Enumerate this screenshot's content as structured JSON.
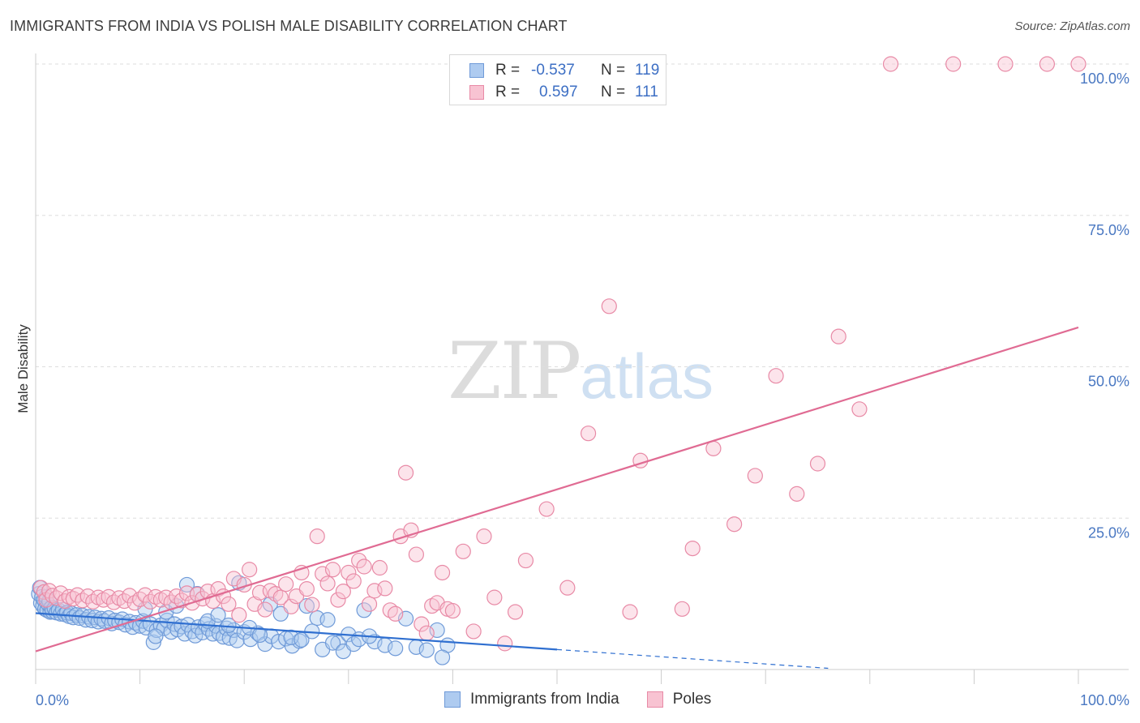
{
  "header": {
    "title": "IMMIGRANTS FROM INDIA VS POLISH MALE DISABILITY CORRELATION CHART",
    "source": "Source: ZipAtlas.com"
  },
  "watermark": {
    "part1": "ZIP",
    "part2": "atlas"
  },
  "legend_top": {
    "rows": [
      {
        "r_label": "R =",
        "r_value": "-0.537",
        "n_label": "N =",
        "n_value": "119",
        "color": "#aecbf0",
        "border": "#6f9ad8"
      },
      {
        "r_label": "R =",
        "r_value": "0.597",
        "n_label": "N =",
        "n_value": "111",
        "color": "#f8c3d2",
        "border": "#e88aa6"
      }
    ]
  },
  "legend_bottom": {
    "items": [
      {
        "label": "Immigrants from India",
        "color": "#aecbf0",
        "border": "#6f9ad8"
      },
      {
        "label": "Poles",
        "color": "#f8c3d2",
        "border": "#e88aa6"
      }
    ]
  },
  "chart_data": {
    "type": "scatter",
    "title": "IMMIGRANTS FROM INDIA VS POLISH MALE DISABILITY CORRELATION CHART",
    "xlabel": "",
    "ylabel": "Male Disability",
    "xlim": [
      0,
      100
    ],
    "ylim": [
      0,
      100
    ],
    "x_tick_labels": [
      "0.0%",
      "100.0%"
    ],
    "y_ticks": [
      25,
      50,
      75,
      100
    ],
    "y_tick_labels": [
      "25.0%",
      "50.0%",
      "75.0%",
      "100.0%"
    ],
    "grid": "horizontal dashed",
    "legend_position": "top-center",
    "colors": {
      "india_fill": "#aecbf0",
      "india_stroke": "#6f9ad8",
      "india_line": "#2f6fd0",
      "poles_fill": "#f8c3d2",
      "poles_stroke": "#e88aa6",
      "poles_line": "#e06b93"
    },
    "series": [
      {
        "name": "Immigrants from India",
        "trend": {
          "x": [
            0,
            50,
            76
          ],
          "y": [
            9.3,
            3.3,
            0.2
          ],
          "solid_until": 50
        },
        "points": [
          [
            0.3,
            12.5
          ],
          [
            0.4,
            13.5
          ],
          [
            0.5,
            11
          ],
          [
            0.6,
            12
          ],
          [
            0.7,
            10.5
          ],
          [
            0.8,
            11.5
          ],
          [
            0.9,
            10
          ],
          [
            1.0,
            12
          ],
          [
            1.1,
            9.8
          ],
          [
            1.2,
            10.8
          ],
          [
            1.3,
            11.3
          ],
          [
            1.4,
            9.5
          ],
          [
            1.5,
            10.2
          ],
          [
            1.6,
            9.6
          ],
          [
            1.8,
            10.1
          ],
          [
            2.0,
            9.4
          ],
          [
            2.2,
            9.8
          ],
          [
            2.4,
            9.2
          ],
          [
            2.6,
            9.9
          ],
          [
            2.8,
            9.1
          ],
          [
            3.0,
            9.4
          ],
          [
            3.2,
            8.8
          ],
          [
            3.4,
            9.3
          ],
          [
            3.6,
            8.6
          ],
          [
            3.9,
            9.0
          ],
          [
            4.2,
            8.5
          ],
          [
            4.5,
            8.9
          ],
          [
            4.8,
            8.2
          ],
          [
            5.1,
            8.7
          ],
          [
            5.4,
            8.1
          ],
          [
            5.7,
            8.6
          ],
          [
            6.0,
            7.9
          ],
          [
            6.3,
            8.4
          ],
          [
            6.6,
            8.0
          ],
          [
            7.0,
            8.5
          ],
          [
            7.3,
            7.6
          ],
          [
            7.6,
            8.1
          ],
          [
            8.0,
            7.8
          ],
          [
            8.3,
            8.3
          ],
          [
            8.6,
            7.4
          ],
          [
            9.0,
            7.9
          ],
          [
            9.3,
            7.0
          ],
          [
            9.6,
            7.7
          ],
          [
            10.0,
            7.2
          ],
          [
            10.3,
            8.0
          ],
          [
            10.6,
            6.9
          ],
          [
            11.0,
            7.5
          ],
          [
            11.3,
            4.5
          ],
          [
            11.6,
            6.5
          ],
          [
            12.0,
            7.3
          ],
          [
            12.3,
            6.8
          ],
          [
            12.6,
            8.1
          ],
          [
            13.0,
            6.2
          ],
          [
            13.3,
            7.5
          ],
          [
            13.6,
            6.6
          ],
          [
            14.0,
            7.1
          ],
          [
            14.3,
            5.9
          ],
          [
            14.6,
            7.4
          ],
          [
            15.0,
            6.3
          ],
          [
            15.3,
            5.6
          ],
          [
            15.6,
            7.0
          ],
          [
            16.0,
            6.1
          ],
          [
            16.3,
            7.5
          ],
          [
            16.6,
            6.7
          ],
          [
            17.0,
            5.9
          ],
          [
            17.3,
            7.2
          ],
          [
            17.6,
            6.0
          ],
          [
            18.0,
            5.4
          ],
          [
            18.3,
            6.8
          ],
          [
            18.6,
            5.2
          ],
          [
            19.0,
            6.5
          ],
          [
            19.3,
            4.8
          ],
          [
            20.0,
            6.2
          ],
          [
            20.6,
            5.0
          ],
          [
            21.3,
            6.0
          ],
          [
            22.0,
            4.2
          ],
          [
            22.6,
            5.5
          ],
          [
            23.3,
            4.6
          ],
          [
            24.0,
            5.1
          ],
          [
            24.6,
            3.9
          ],
          [
            25.3,
            4.7
          ],
          [
            26.0,
            10.5
          ],
          [
            27.0,
            8.5
          ],
          [
            28.0,
            8.2
          ],
          [
            29.0,
            4.4
          ],
          [
            30.0,
            5.8
          ],
          [
            31.5,
            9.8
          ],
          [
            32.5,
            4.6
          ],
          [
            33.5,
            4.0
          ],
          [
            34.5,
            3.5
          ],
          [
            35.5,
            8.4
          ],
          [
            36.5,
            3.7
          ],
          [
            37.5,
            3.2
          ],
          [
            38.5,
            6.5
          ],
          [
            39.5,
            4.0
          ],
          [
            10.5,
            10.0
          ],
          [
            11.5,
            5.5
          ],
          [
            12.5,
            9.5
          ],
          [
            13.5,
            10.5
          ],
          [
            14.5,
            14.0
          ],
          [
            15.5,
            12.5
          ],
          [
            16.5,
            8.0
          ],
          [
            17.5,
            9.0
          ],
          [
            18.5,
            7.3
          ],
          [
            19.5,
            14.3
          ],
          [
            20.5,
            6.9
          ],
          [
            21.5,
            5.7
          ],
          [
            22.5,
            10.8
          ],
          [
            23.5,
            9.2
          ],
          [
            24.5,
            5.3
          ],
          [
            25.5,
            4.9
          ],
          [
            26.5,
            6.3
          ],
          [
            27.5,
            3.3
          ],
          [
            28.5,
            4.4
          ],
          [
            29.5,
            3.0
          ],
          [
            30.5,
            4.2
          ],
          [
            31.0,
            5.0
          ],
          [
            32.0,
            5.5
          ],
          [
            39.0,
            2.0
          ]
        ]
      },
      {
        "name": "Poles",
        "trend": {
          "x": [
            0,
            100
          ],
          "y": [
            3.0,
            56.5
          ]
        },
        "points": [
          [
            0.5,
            13.5
          ],
          [
            0.8,
            12.8
          ],
          [
            1.0,
            11.5
          ],
          [
            1.3,
            13.0
          ],
          [
            1.6,
            12.2
          ],
          [
            2.0,
            11.8
          ],
          [
            2.4,
            12.6
          ],
          [
            2.8,
            11.3
          ],
          [
            3.2,
            12.0
          ],
          [
            3.6,
            11.7
          ],
          [
            4.0,
            12.3
          ],
          [
            4.5,
            11.4
          ],
          [
            5.0,
            12.1
          ],
          [
            5.5,
            11.2
          ],
          [
            6.0,
            11.9
          ],
          [
            6.5,
            11.5
          ],
          [
            7.0,
            12.0
          ],
          [
            7.5,
            11.1
          ],
          [
            8.0,
            11.8
          ],
          [
            8.5,
            11.3
          ],
          [
            9.0,
            12.2
          ],
          [
            9.5,
            11.0
          ],
          [
            10.0,
            11.6
          ],
          [
            10.5,
            12.3
          ],
          [
            11.0,
            11.2
          ],
          [
            11.5,
            12.0
          ],
          [
            12.0,
            11.5
          ],
          [
            12.5,
            11.9
          ],
          [
            13.0,
            11.1
          ],
          [
            13.5,
            12.1
          ],
          [
            14.0,
            11.4
          ],
          [
            14.5,
            12.6
          ],
          [
            15.0,
            11.0
          ],
          [
            15.5,
            12.4
          ],
          [
            16.0,
            11.7
          ],
          [
            16.5,
            12.9
          ],
          [
            17.0,
            11.3
          ],
          [
            17.5,
            13.3
          ],
          [
            18.0,
            12.1
          ],
          [
            18.5,
            10.8
          ],
          [
            19.0,
            15.0
          ],
          [
            19.5,
            9.0
          ],
          [
            20.0,
            14.0
          ],
          [
            20.5,
            16.5
          ],
          [
            21.0,
            10.8
          ],
          [
            21.5,
            12.7
          ],
          [
            22.0,
            9.9
          ],
          [
            22.5,
            13.0
          ],
          [
            23.0,
            12.5
          ],
          [
            23.5,
            11.9
          ],
          [
            24.0,
            14.1
          ],
          [
            24.5,
            10.4
          ],
          [
            25.0,
            12.1
          ],
          [
            25.5,
            16.0
          ],
          [
            26.0,
            13.3
          ],
          [
            26.5,
            10.7
          ],
          [
            27.0,
            22.0
          ],
          [
            27.5,
            15.8
          ],
          [
            28.0,
            14.2
          ],
          [
            28.5,
            16.5
          ],
          [
            29.0,
            11.5
          ],
          [
            29.5,
            12.9
          ],
          [
            30.0,
            16.0
          ],
          [
            30.5,
            14.6
          ],
          [
            31.0,
            18.0
          ],
          [
            31.5,
            17.0
          ],
          [
            32.0,
            10.8
          ],
          [
            32.5,
            13.0
          ],
          [
            33.0,
            16.8
          ],
          [
            33.5,
            13.4
          ],
          [
            34.0,
            9.8
          ],
          [
            34.5,
            9.2
          ],
          [
            35.0,
            22.0
          ],
          [
            35.5,
            32.5
          ],
          [
            36.0,
            23.0
          ],
          [
            36.5,
            19.0
          ],
          [
            37.0,
            7.5
          ],
          [
            37.5,
            6.0
          ],
          [
            38.0,
            10.5
          ],
          [
            38.5,
            11.0
          ],
          [
            39.0,
            16.0
          ],
          [
            39.5,
            10.0
          ],
          [
            40.0,
            9.7
          ],
          [
            41.0,
            19.5
          ],
          [
            42.0,
            6.3
          ],
          [
            43.0,
            22.0
          ],
          [
            44.0,
            11.9
          ],
          [
            45.0,
            4.3
          ],
          [
            46.0,
            9.5
          ],
          [
            47.0,
            18.0
          ],
          [
            49.0,
            26.5
          ],
          [
            51.0,
            13.5
          ],
          [
            53.0,
            39.0
          ],
          [
            55.0,
            60.0
          ],
          [
            57.0,
            9.5
          ],
          [
            58.0,
            34.5
          ],
          [
            62.0,
            10.0
          ],
          [
            63.0,
            20.0
          ],
          [
            65.0,
            36.5
          ],
          [
            67.0,
            24.0
          ],
          [
            69.0,
            32.0
          ],
          [
            71.0,
            48.5
          ],
          [
            73.0,
            29.0
          ],
          [
            75.0,
            34.0
          ],
          [
            77.0,
            55.0
          ],
          [
            79.0,
            43.0
          ],
          [
            82.0,
            100
          ],
          [
            88.0,
            100
          ],
          [
            93.0,
            100
          ],
          [
            97.0,
            100
          ],
          [
            100.0,
            100
          ]
        ]
      }
    ]
  }
}
